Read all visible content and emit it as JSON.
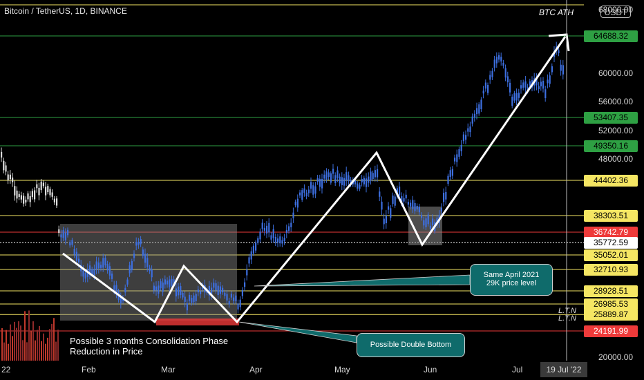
{
  "header": {
    "title": "Bitcoin / TetherUS, 1D, BINANCE",
    "ath_label": "BTC ATH",
    "currency": "USDT"
  },
  "price_labels": [
    {
      "text": "64688.32",
      "bg": "#2ea043",
      "fg": "#000000",
      "price": 64688.32
    },
    {
      "text": "53407.35",
      "bg": "#2ea043",
      "fg": "#000000",
      "price": 53407.35
    },
    {
      "text": "49350.16",
      "bg": "#2ea043",
      "fg": "#000000",
      "price": 49350.16
    },
    {
      "text": "44402.36",
      "bg": "#f5e663",
      "fg": "#000000",
      "price": 44402.36
    },
    {
      "text": "38303.51",
      "bg": "#f5e663",
      "fg": "#000000",
      "price": 38303.51
    },
    {
      "text": "36742.79",
      "bg": "#ee3a3a",
      "fg": "#ffffff",
      "price": 36742.79
    },
    {
      "text": "35772.59",
      "bg": "#ffffff",
      "fg": "#000000",
      "price": 35772.59
    },
    {
      "text": "35052.01",
      "bg": "#f5e663",
      "fg": "#000000",
      "price": 35052.01
    },
    {
      "text": "32710.93",
      "bg": "#f5e663",
      "fg": "#000000",
      "price": 32710.93
    },
    {
      "text": "28928.51",
      "bg": "#f5e663",
      "fg": "#000000",
      "price": 28928.51
    },
    {
      "text": "26985.53",
      "bg": "#f5e663",
      "fg": "#000000",
      "price": 26985.53
    },
    {
      "text": "25889.87",
      "bg": "#f5e663",
      "fg": "#000000",
      "price": 25889.87
    },
    {
      "text": "24191.99",
      "bg": "#ee3a3a",
      "fg": "#ffffff",
      "price": 24191.99
    }
  ],
  "axis_ticks": [
    "68000.00",
    "60000.00",
    "56000.00",
    "52000.00",
    "48000.00",
    "20000.00"
  ],
  "x_labels": [
    "22",
    "Feb",
    "Mar",
    "Apr",
    "May",
    "Jun",
    "Jul"
  ],
  "date_label": "19 Jul '22",
  "ltn_labels": [
    "L.T.N",
    "L.T.N"
  ],
  "annotations": {
    "consolidation": [
      "Possible 3 months Consolidation Phase",
      "Reduction in Price"
    ],
    "april_level": [
      "Same April 2021",
      "29K price level"
    ],
    "double_bottom": "Possible Double Bottom"
  },
  "colors": {
    "candle": "#3d6fe0",
    "green_line": "#2ea043",
    "yellow_line": "#f5e663",
    "red_line": "#ee3a3a",
    "bubble": "#0f6b6b"
  },
  "chart_data": {
    "type": "line",
    "title": "Bitcoin / TetherUS, 1D, BINANCE",
    "y_range": [
      20000,
      68000
    ],
    "x_range": [
      "2022-01",
      "2022-07"
    ],
    "series": [
      {
        "x": [
          "Jan",
          "Jan",
          "Feb",
          "Feb",
          "Mar",
          "Mar",
          "Apr",
          "Apr",
          "May",
          "May",
          "Jun",
          "Jun",
          "Jul",
          "Jul"
        ],
        "values": [
          47000,
          43000,
          34000,
          36000,
          29000,
          27500,
          34000,
          42000,
          45000,
          40000,
          36500,
          47000,
          57000,
          64000
        ]
      }
    ]
  }
}
